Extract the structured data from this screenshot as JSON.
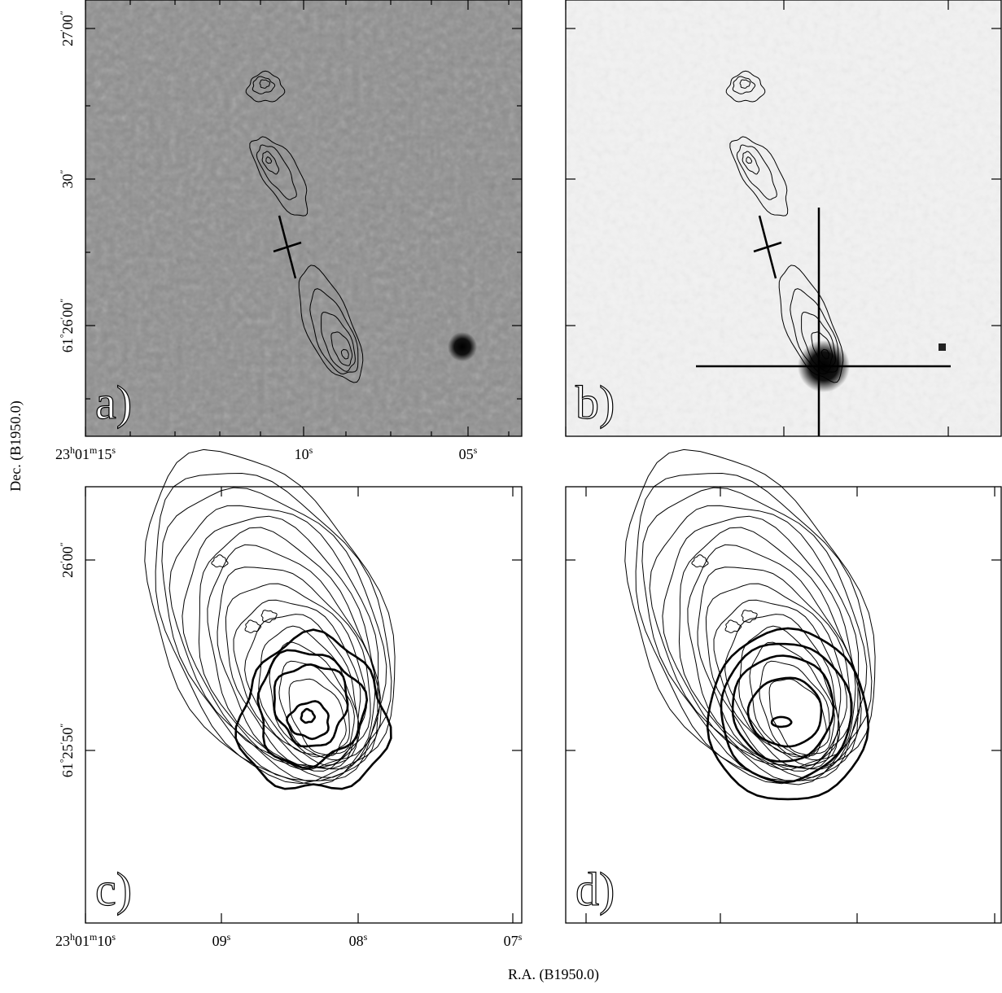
{
  "figure": {
    "y_axis_label": "Dec. (B1950.0)",
    "x_axis_label": "R.A. (B1950.0)",
    "panels": [
      {
        "label": "a)",
        "x_ticks": [
          [
            "23",
            "h",
            "01",
            "m",
            "15",
            "s"
          ],
          [
            "10",
            "s"
          ],
          [
            "05",
            "s"
          ]
        ],
        "y_ticks": [
          [
            "27",
            "′",
            "00",
            "″"
          ],
          [
            "30",
            "″"
          ],
          [
            "61",
            "°",
            "26",
            "′",
            "00",
            "″"
          ]
        ]
      },
      {
        "label": "b)"
      },
      {
        "label": "c)",
        "x_ticks": [
          [
            "23",
            "h",
            "01",
            "m",
            "10",
            "s"
          ],
          [
            "09",
            "s"
          ],
          [
            "08",
            "s"
          ],
          [
            "07",
            "s"
          ]
        ],
        "y_ticks": [
          [
            "26",
            "′",
            "00",
            "″"
          ],
          [
            "61",
            "°",
            "25",
            "′",
            "50",
            "″"
          ]
        ]
      },
      {
        "label": "d)"
      }
    ]
  }
}
